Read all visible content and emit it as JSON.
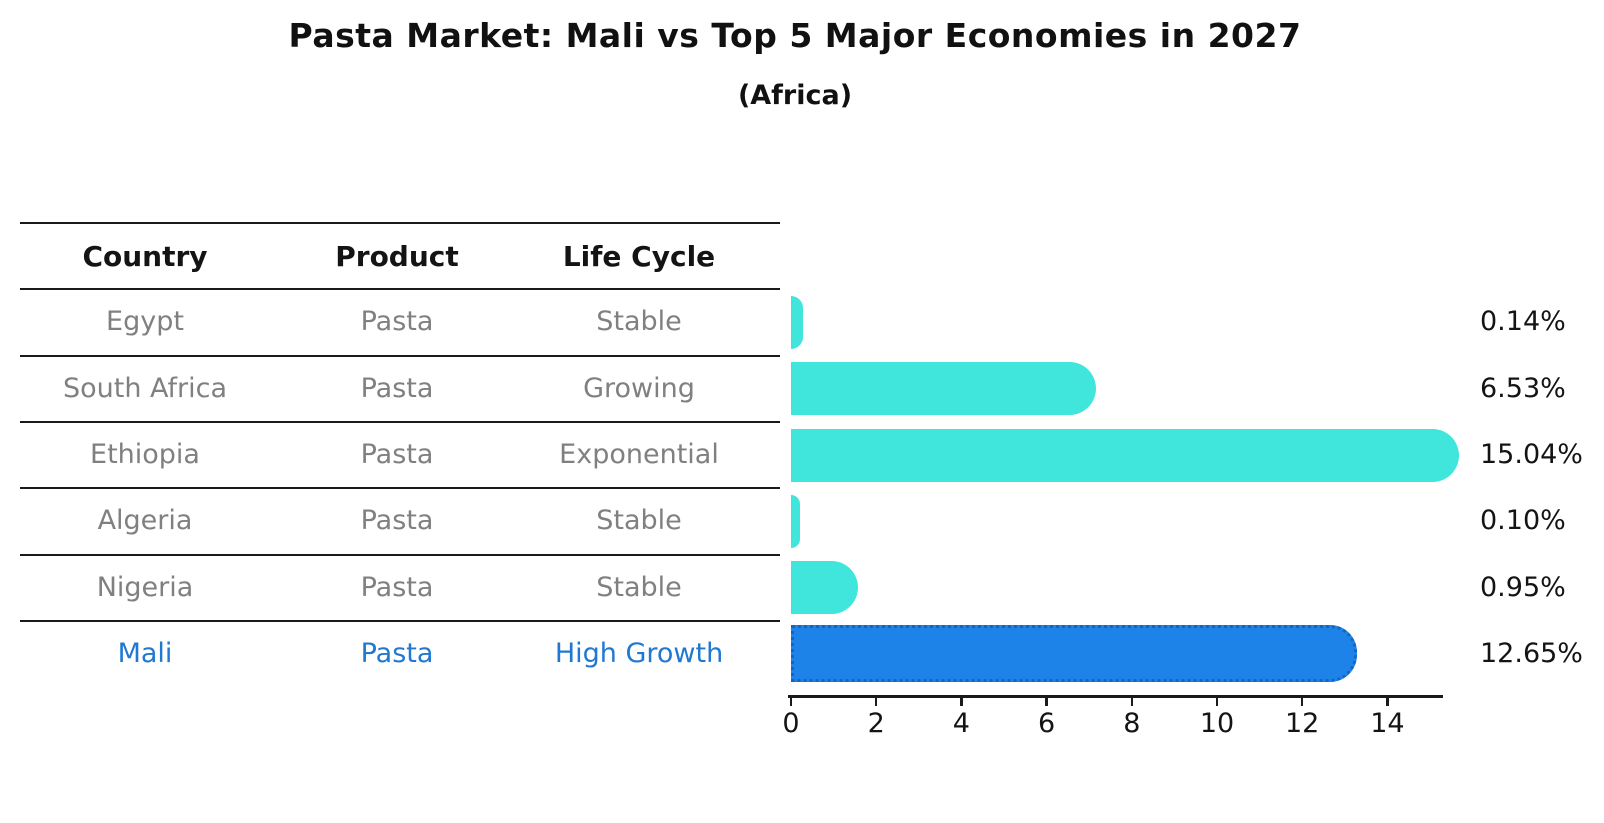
{
  "title": "Pasta Market: Mali vs Top 5 Major Economies in 2027",
  "subtitle": "(Africa)",
  "table": {
    "headers": [
      "Country",
      "Product",
      "Life Cycle"
    ],
    "rows": [
      {
        "country": "Egypt",
        "product": "Pasta",
        "life_cycle": "Stable",
        "highlight": false
      },
      {
        "country": "South Africa",
        "product": "Pasta",
        "life_cycle": "Growing",
        "highlight": false
      },
      {
        "country": "Ethiopia",
        "product": "Pasta",
        "life_cycle": "Exponential",
        "highlight": false
      },
      {
        "country": "Algeria",
        "product": "Pasta",
        "life_cycle": "Stable",
        "highlight": false
      },
      {
        "country": "Nigeria",
        "product": "Pasta",
        "life_cycle": "Stable",
        "highlight": false
      },
      {
        "country": "Mali",
        "product": "Pasta",
        "life_cycle": "High Growth",
        "highlight": true
      }
    ]
  },
  "chart_data": {
    "type": "bar",
    "orientation": "horizontal",
    "categories": [
      "Egypt",
      "South Africa",
      "Ethiopia",
      "Algeria",
      "Nigeria",
      "Mali"
    ],
    "values": [
      0.14,
      6.53,
      15.04,
      0.1,
      0.95,
      12.65
    ],
    "value_labels": [
      "0.14%",
      "6.53%",
      "15.04%",
      "0.10%",
      "0.95%",
      "12.65%"
    ],
    "highlight_index": 5,
    "xticks": [
      0,
      2,
      4,
      6,
      8,
      10,
      12,
      14
    ],
    "xlim": [
      0,
      15.3
    ],
    "grid": false,
    "legend": "none",
    "xlabel": "",
    "ylabel": ""
  },
  "colors": {
    "bar_default": "#40E5DB",
    "bar_highlight": "#1E83E8",
    "bar_highlight_border": "#1565C0",
    "text_highlight": "#2078D2",
    "text_muted": "#808080",
    "text_dark": "#141414",
    "line": "#1a1a1a"
  }
}
